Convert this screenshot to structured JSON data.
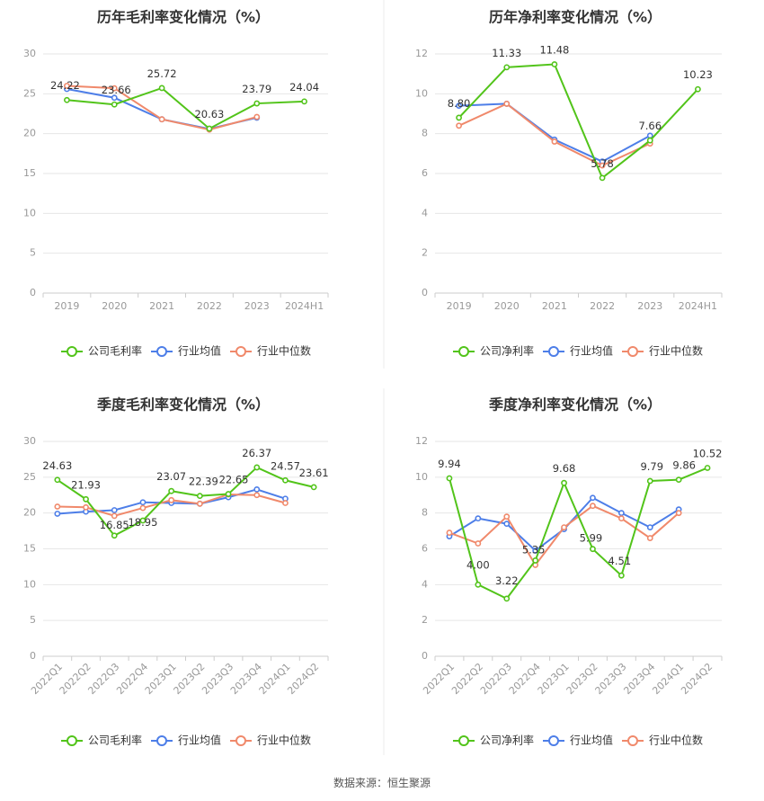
{
  "source_text": "数据来源：恒生聚源",
  "colors": {
    "company": "#52c41a",
    "avg": "#4d7ee8",
    "median": "#f0896b"
  },
  "chart_data": [
    {
      "type": "line",
      "title": "历年毛利率变化情况（%）",
      "categories": [
        "2019",
        "2020",
        "2021",
        "2022",
        "2023",
        "2024H1"
      ],
      "ylim": [
        0,
        30
      ],
      "yticks": [
        0,
        5,
        10,
        15,
        20,
        25,
        30
      ],
      "series": [
        {
          "name": "公司毛利率",
          "role": "company",
          "values": [
            24.22,
            23.66,
            25.72,
            20.63,
            23.79,
            24.04
          ],
          "labels": [
            "24.22",
            "23.66",
            "25.72",
            "20.63",
            "23.79",
            "24.04"
          ]
        },
        {
          "name": "行业均值",
          "role": "avg",
          "values": [
            25.6,
            24.5,
            21.8,
            20.6,
            22.0,
            null
          ]
        },
        {
          "name": "行业中位数",
          "role": "median",
          "values": [
            26.0,
            25.7,
            21.8,
            20.5,
            22.1,
            null
          ]
        }
      ],
      "legend": "bottom"
    },
    {
      "type": "line",
      "title": "历年净利率变化情况（%）",
      "categories": [
        "2019",
        "2020",
        "2021",
        "2022",
        "2023",
        "2024H1"
      ],
      "ylim": [
        0,
        12
      ],
      "yticks": [
        0,
        2,
        4,
        6,
        8,
        10,
        12
      ],
      "series": [
        {
          "name": "公司净利率",
          "role": "company",
          "values": [
            8.8,
            11.33,
            11.48,
            5.78,
            7.66,
            10.23
          ],
          "labels": [
            "8.80",
            "11.33",
            "11.48",
            "5.78",
            "7.66",
            "10.23"
          ]
        },
        {
          "name": "行业均值",
          "role": "avg",
          "values": [
            9.4,
            9.5,
            7.7,
            6.6,
            7.9,
            null
          ]
        },
        {
          "name": "行业中位数",
          "role": "median",
          "values": [
            8.4,
            9.5,
            7.6,
            6.4,
            7.5,
            null
          ]
        }
      ],
      "legend": "bottom"
    },
    {
      "type": "line",
      "title": "季度毛利率变化情况（%）",
      "categories": [
        "2022Q1",
        "2022Q2",
        "2022Q3",
        "2022Q4",
        "2023Q1",
        "2023Q2",
        "2023Q3",
        "2023Q4",
        "2024Q1",
        "2024Q2"
      ],
      "ylim": [
        0,
        30
      ],
      "yticks": [
        0,
        5,
        10,
        15,
        20,
        25,
        30
      ],
      "series": [
        {
          "name": "公司毛利率",
          "role": "company",
          "values": [
            24.63,
            21.93,
            16.85,
            18.95,
            23.07,
            22.39,
            22.65,
            26.37,
            24.57,
            23.61
          ],
          "labels": [
            "24.63",
            "21.93",
            "16.85",
            "18.95",
            "23.07",
            "22.39",
            "22.65",
            "26.37",
            "24.57",
            "23.61"
          ]
        },
        {
          "name": "行业均值",
          "role": "avg",
          "values": [
            19.9,
            20.2,
            20.4,
            21.5,
            21.4,
            21.3,
            22.2,
            23.3,
            22.0,
            null
          ]
        },
        {
          "name": "行业中位数",
          "role": "median",
          "values": [
            20.9,
            20.8,
            19.6,
            20.7,
            21.8,
            21.3,
            22.6,
            22.5,
            21.4,
            null
          ]
        }
      ],
      "legend": "bottom"
    },
    {
      "type": "line",
      "title": "季度净利率变化情况（%）",
      "categories": [
        "2022Q1",
        "2022Q2",
        "2022Q3",
        "2022Q4",
        "2023Q1",
        "2023Q2",
        "2023Q3",
        "2023Q4",
        "2024Q1",
        "2024Q2"
      ],
      "ylim": [
        0,
        12
      ],
      "yticks": [
        0,
        2,
        4,
        6,
        8,
        10,
        12
      ],
      "series": [
        {
          "name": "公司净利率",
          "role": "company",
          "values": [
            9.94,
            4.0,
            3.22,
            5.35,
            9.68,
            5.99,
            4.51,
            9.79,
            9.86,
            10.52
          ],
          "labels": [
            "9.94",
            "4.00",
            "3.22",
            "5.35",
            "9.68",
            "5.99",
            "4.51",
            "9.79",
            "9.86",
            "10.52"
          ]
        },
        {
          "name": "行业均值",
          "role": "avg",
          "values": [
            6.7,
            7.7,
            7.4,
            5.9,
            7.1,
            8.85,
            8.0,
            7.2,
            8.2,
            null
          ]
        },
        {
          "name": "行业中位数",
          "role": "median",
          "values": [
            6.9,
            6.3,
            7.8,
            5.1,
            7.2,
            8.4,
            7.7,
            6.6,
            8.0,
            null
          ]
        }
      ],
      "legend": "bottom"
    }
  ]
}
